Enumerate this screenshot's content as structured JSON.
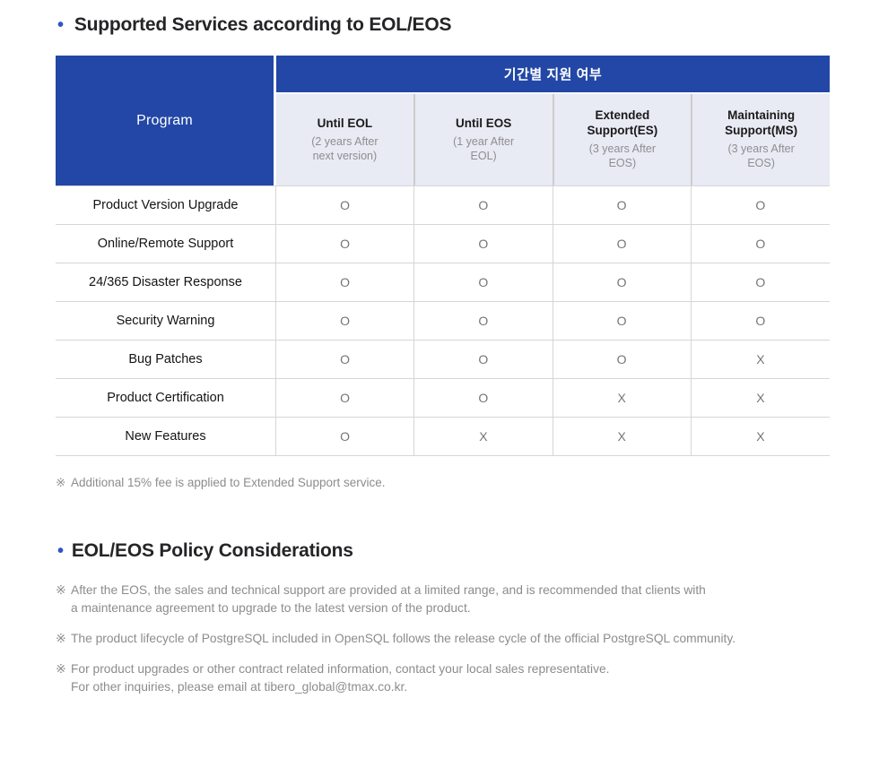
{
  "section1": {
    "bullet": "•",
    "title": "Supported Services according to EOL/EOS"
  },
  "table": {
    "program_header": "Program",
    "group_header": "기간별 지원 여부",
    "columns": [
      {
        "title": "Until EOL",
        "subtitle": "(2 years After\nnext version)"
      },
      {
        "title": "Until EOS",
        "subtitle": "(1 year After\nEOL)"
      },
      {
        "title": "Extended\nSupport(ES)",
        "subtitle": "(3 years After\nEOS)"
      },
      {
        "title": "Maintaining\nSupport(MS)",
        "subtitle": "(3 years After\nEOS)"
      }
    ],
    "rows": [
      {
        "label": "Product Version Upgrade",
        "values": [
          "O",
          "O",
          "O",
          "O"
        ]
      },
      {
        "label": "Online/Remote Support",
        "values": [
          "O",
          "O",
          "O",
          "O"
        ]
      },
      {
        "label": "24/365 Disaster Response",
        "values": [
          "O",
          "O",
          "O",
          "O"
        ]
      },
      {
        "label": "Security Warning",
        "values": [
          "O",
          "O",
          "O",
          "O"
        ]
      },
      {
        "label": "Bug Patches",
        "values": [
          "O",
          "O",
          "O",
          "X"
        ]
      },
      {
        "label": "Product Certification",
        "values": [
          "O",
          "O",
          "X",
          "X"
        ]
      },
      {
        "label": "New Features",
        "values": [
          "O",
          "X",
          "X",
          "X"
        ]
      }
    ],
    "footnote": {
      "symbol": "※",
      "text": "Additional 15% fee is applied to Extended Support service."
    }
  },
  "section2": {
    "bullet": "•",
    "title": "EOL/EOS Policy Considerations",
    "notes": [
      {
        "symbol": "※",
        "line1": "After the EOS, the sales and technical support are provided at a limited range, and is recommended that clients with",
        "line2": "a maintenance agreement to upgrade to the latest version of the product."
      },
      {
        "symbol": "※",
        "line1": "The product lifecycle of PostgreSQL included in OpenSQL follows the release cycle of the official PostgreSQL community.",
        "line2": ""
      },
      {
        "symbol": "※",
        "line1": "For product upgrades or other contract related information, contact your local sales representative.",
        "line2": "For other inquiries, please email at tibero_global@tmax.co.kr."
      }
    ]
  },
  "colors": {
    "header_blue": "#2247A6",
    "subheader_bg": "#E8EAF4",
    "bullet_blue": "#2E55C4"
  }
}
